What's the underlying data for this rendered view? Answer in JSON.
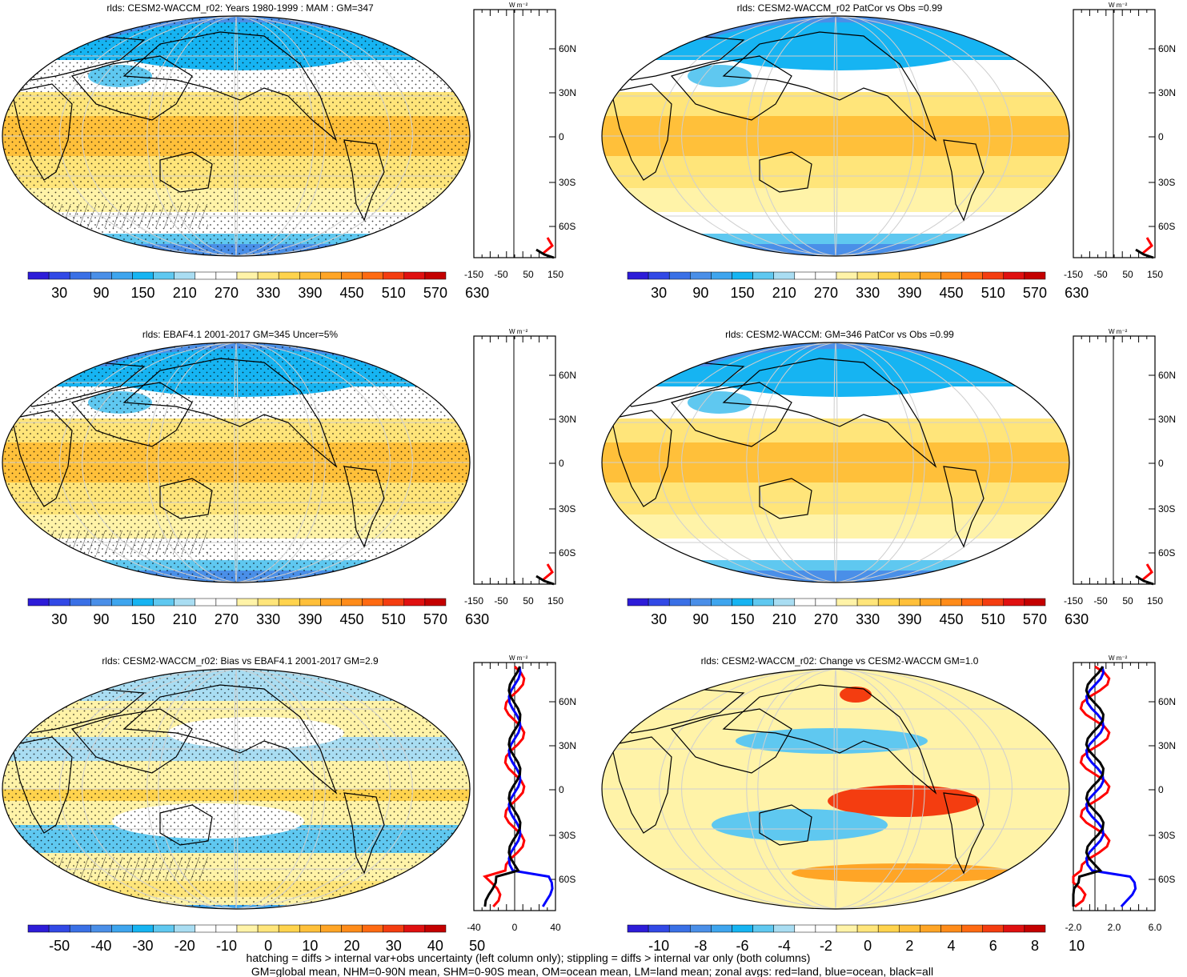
{
  "variable": "rlds",
  "zonal_unit": "W m⁻²",
  "lat_labels": [
    "60N",
    "30N",
    "0",
    "30S",
    "60S"
  ],
  "footnotes": [
    "hatching = diffs > internal var+obs uncertainty (left column only); stippling = diffs > internal var only (both columns)",
    "GM=global mean, NHM=0-90N mean, SHM=0-90S mean, OM=ocean mean, LM=land mean; zonal avgs: red=land, blue=ocean, black=all"
  ],
  "panels": [
    {
      "title": "rlds: CESM2-WACCM_r02: Years 1980-1999 : MAM : GM=347",
      "colorbar": [
        "30",
        "90",
        "150",
        "210",
        "270",
        "330",
        "390",
        "450",
        "510",
        "570",
        "630"
      ],
      "zonal_ticks": [
        "-150",
        "-50",
        "50",
        "150"
      ],
      "map": "clim",
      "stipple": true,
      "hatch": true
    },
    {
      "title": "rlds: CESM2-WACCM_r02 PatCor vs Obs =0.99",
      "colorbar": [
        "30",
        "90",
        "150",
        "210",
        "270",
        "330",
        "390",
        "450",
        "510",
        "570",
        "630"
      ],
      "zonal_ticks": [
        "-150",
        "-50",
        "50",
        "150"
      ],
      "map": "clim",
      "stipple": false,
      "hatch": false
    },
    {
      "title": "rlds: EBAF4.1 2001-2017 GM=345 Uncer=5%",
      "colorbar": [
        "30",
        "90",
        "150",
        "210",
        "270",
        "330",
        "390",
        "450",
        "510",
        "570",
        "630"
      ],
      "zonal_ticks": [
        "-150",
        "-50",
        "50",
        "150"
      ],
      "map": "clim",
      "stipple": true,
      "hatch": true
    },
    {
      "title": "rlds: CESM2-WACCM: GM=346 PatCor vs Obs =0.99",
      "colorbar": [
        "30",
        "90",
        "150",
        "210",
        "270",
        "330",
        "390",
        "450",
        "510",
        "570",
        "630"
      ],
      "zonal_ticks": [
        "-150",
        "-50",
        "50",
        "150"
      ],
      "map": "clim",
      "stipple": false,
      "hatch": false
    },
    {
      "title": "rlds: CESM2-WACCM_r02: Bias vs EBAF4.1 2001-2017 GM=2.9",
      "colorbar": [
        "-50",
        "-40",
        "-30",
        "-20",
        "-10",
        "0",
        "10",
        "20",
        "30",
        "40",
        "50"
      ],
      "zonal_ticks": [
        "-40",
        "0",
        "40"
      ],
      "map": "bias",
      "stipple": true,
      "hatch": true
    },
    {
      "title": "rlds: CESM2-WACCM_r02: Change vs CESM2-WACCM GM=1.0",
      "colorbar": [
        "-10",
        "-8",
        "-6",
        "-4",
        "-2",
        "0",
        "2",
        "4",
        "6",
        "8",
        "10"
      ],
      "zonal_ticks": [
        "-2.0",
        "2.0",
        "6.0"
      ],
      "map": "change",
      "stipple": false,
      "hatch": false
    }
  ],
  "colors": {
    "scale": [
      "#2d1cd8",
      "#3249e6",
      "#3a70e6",
      "#4a8fe8",
      "#3ea5ee",
      "#16b4f2",
      "#5fc8f0",
      "#a9ddf2",
      "#ffffff",
      "#ffffff",
      "#fff3a8",
      "#ffe57a",
      "#ffd34d",
      "#ffc03a",
      "#ffa526",
      "#ff8c1a",
      "#ff6a12",
      "#f43d10",
      "#e01010",
      "#c40000"
    ],
    "land": "#ff0000",
    "ocean": "#0000ff",
    "all": "#000000"
  }
}
